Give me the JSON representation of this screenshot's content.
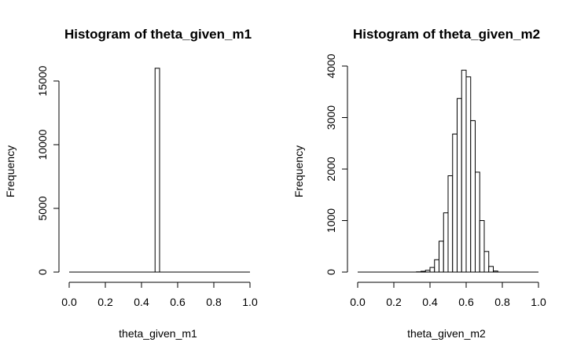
{
  "chart_data": [
    {
      "type": "bar",
      "title": "Histogram of theta_given_m1",
      "xlabel": "theta_given_m1",
      "ylabel": "Frequency",
      "xlim": [
        0,
        1
      ],
      "ylim": [
        0,
        16000
      ],
      "x_ticks": [
        "0.0",
        "0.2",
        "0.4",
        "0.6",
        "0.8",
        "1.0"
      ],
      "y_ticks": [
        "0",
        "5000",
        "10000",
        "15000"
      ],
      "bin_width": 0.025,
      "bins": [
        {
          "x0": 0.475,
          "x1": 0.5,
          "value": 16000
        }
      ],
      "grid": false
    },
    {
      "type": "bar",
      "title": "Histogram of theta_given_m2",
      "xlabel": "theta_given_m2",
      "ylabel": "Frequency",
      "xlim": [
        0,
        1
      ],
      "ylim": [
        0,
        4000
      ],
      "x_ticks": [
        "0.0",
        "0.2",
        "0.4",
        "0.6",
        "0.8",
        "1.0"
      ],
      "y_ticks": [
        "0",
        "1000",
        "2000",
        "3000",
        "4000"
      ],
      "bin_width": 0.025,
      "bins": [
        {
          "x0": 0.325,
          "x1": 0.35,
          "value": 5
        },
        {
          "x0": 0.35,
          "x1": 0.375,
          "value": 15
        },
        {
          "x0": 0.375,
          "x1": 0.4,
          "value": 35
        },
        {
          "x0": 0.4,
          "x1": 0.425,
          "value": 90
        },
        {
          "x0": 0.425,
          "x1": 0.45,
          "value": 240
        },
        {
          "x0": 0.45,
          "x1": 0.475,
          "value": 600
        },
        {
          "x0": 0.475,
          "x1": 0.5,
          "value": 1150
        },
        {
          "x0": 0.5,
          "x1": 0.525,
          "value": 1870
        },
        {
          "x0": 0.525,
          "x1": 0.55,
          "value": 2680
        },
        {
          "x0": 0.55,
          "x1": 0.575,
          "value": 3370
        },
        {
          "x0": 0.575,
          "x1": 0.6,
          "value": 3920
        },
        {
          "x0": 0.6,
          "x1": 0.625,
          "value": 3790
        },
        {
          "x0": 0.625,
          "x1": 0.65,
          "value": 2940
        },
        {
          "x0": 0.65,
          "x1": 0.675,
          "value": 1940
        },
        {
          "x0": 0.675,
          "x1": 0.7,
          "value": 1000
        },
        {
          "x0": 0.7,
          "x1": 0.725,
          "value": 400
        },
        {
          "x0": 0.725,
          "x1": 0.75,
          "value": 110
        },
        {
          "x0": 0.75,
          "x1": 0.775,
          "value": 20
        }
      ],
      "grid": false
    }
  ]
}
